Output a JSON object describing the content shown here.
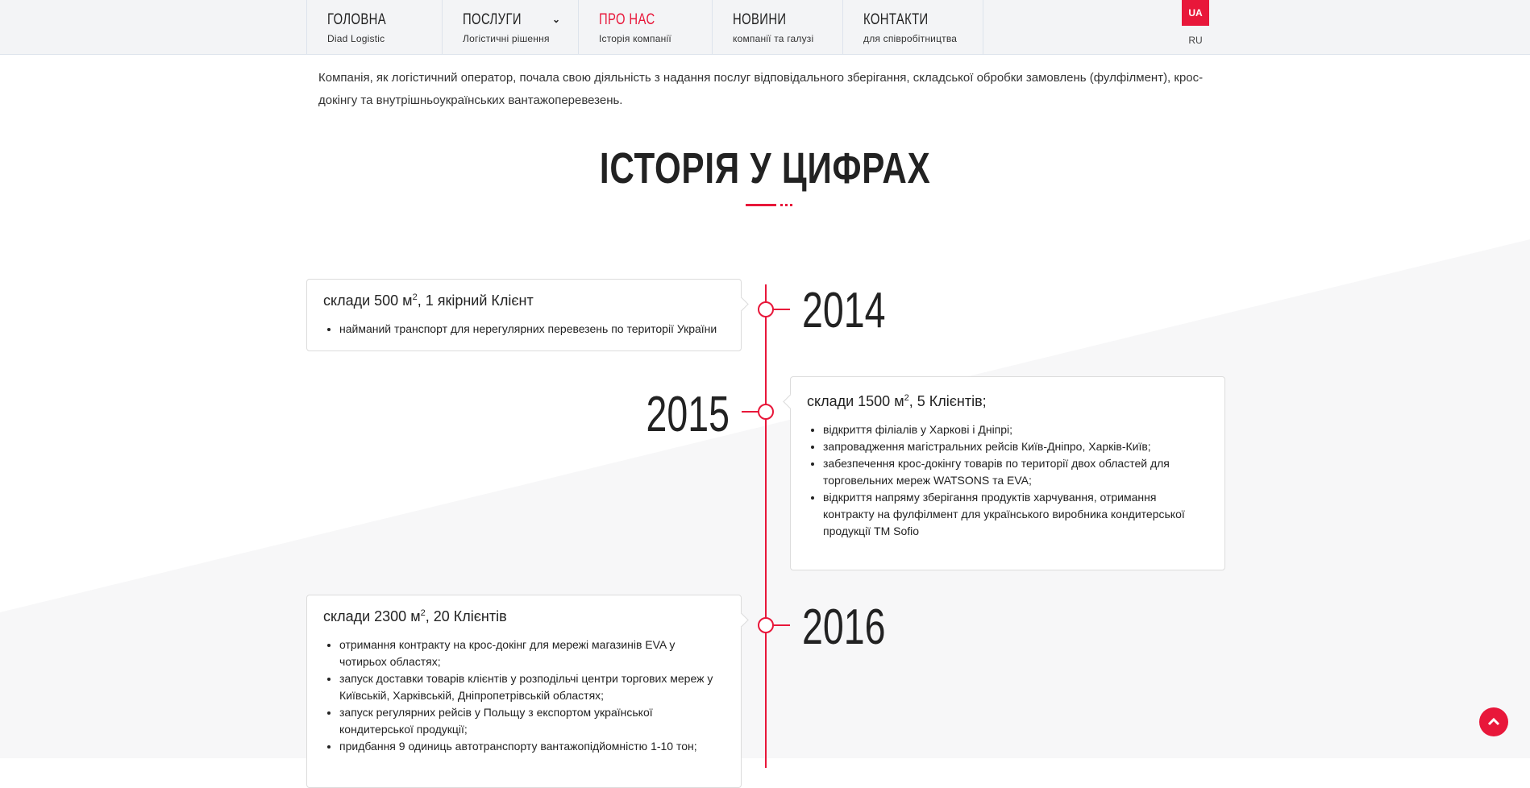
{
  "nav": {
    "items": [
      {
        "title": "ГОЛОВНА",
        "sub": "Diad Logistic"
      },
      {
        "title": "ПОСЛУГИ",
        "sub": "Логістичні рішення"
      },
      {
        "title": "ПРО НАС",
        "sub": "Історія компанії"
      },
      {
        "title": "НОВИНИ",
        "sub": "компанії та галузі"
      },
      {
        "title": "КОНТАКТИ",
        "sub": "для співробітництва"
      }
    ],
    "active": "ПРО НАС",
    "lang": {
      "active": "UA",
      "other": "RU"
    }
  },
  "intro": "Компанія, як логістичний оператор, почала свою діяльність з надання послуг відповідального зберігання, складської обробки замовлень (фулфілмент), крос-докінгу та внутрішньоукраїнських вантажоперевезень.",
  "section_title": "ІСТОРІЯ У ЦИФРАХ",
  "accent_color": "#e8173a",
  "timeline": [
    {
      "year": "2014",
      "heading": "склади 500 м",
      "sup": "2",
      "heading_rest": ", 1 якірний Клієнт",
      "items": [
        "найманий транспорт для нерегулярних перевезень по території України"
      ]
    },
    {
      "year": "2015",
      "heading": "склади 1500 м",
      "sup": "2",
      "heading_rest": ", 5 Клієнтів;",
      "items": [
        "відкриття філіалів у Харкові і Дніпрі;",
        "запровадження магістральних рейсів Київ-Дніпро, Харків-Київ;",
        "забезпечення крос-докінгу товарів по території двох областей для торговельних мереж WATSONS та EVA;",
        "відкриття напряму зберігання продуктів харчування, отримання контракту на фулфілмент для українського виробника кондитерської продукції ТМ Sofio"
      ]
    },
    {
      "year": "2016",
      "heading": "склади 2300 м",
      "sup": "2",
      "heading_rest": ", 20 Клієнтів",
      "items": [
        "отримання контракту на крос-докінг для мережі магазинів EVA у чотирьох областях;",
        "запуск доставки товарів клієнтів у розподільчі центри торгових мереж у Київській, Харківській, Дніпропетрівській областях;",
        "запуск регулярних рейсів у Польщу з експортом української кондитерської продукції;",
        "придбання 9 одиниць автотранспорту вантажопідйомністю 1-10 тон;"
      ]
    }
  ],
  "scroll_top_icon": "chevron-up-icon"
}
